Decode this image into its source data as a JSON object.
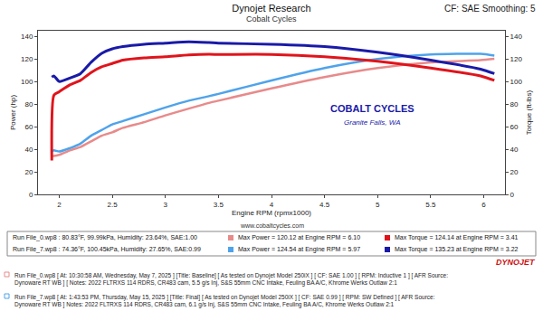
{
  "chart_data": {
    "type": "line",
    "title": "Dynojet Research",
    "subtitle": "Cobalt Cycles",
    "corner_text": "CF: SAE Smoothing: 5",
    "x_label": "Engine RPM (rpmx1000)",
    "y_label": "Power (hp)",
    "y2_label": "Torque (ft-lbs)",
    "website": "www.cobaltcycles.com",
    "logo": [
      "COBALT CYCLES",
      "Granite Falls, WA"
    ],
    "brand": "DYNOJET",
    "grid": false,
    "x": [
      1.93,
      1.95,
      2.0,
      2.1,
      2.2,
      2.3,
      2.4,
      2.5,
      2.6,
      2.8,
      3.0,
      3.22,
      3.41,
      3.5,
      4.0,
      4.5,
      5.0,
      5.5,
      5.97,
      6.1
    ],
    "xlim": [
      1.8,
      6.2
    ],
    "xticks": [
      2,
      2.5,
      3,
      3.5,
      4,
      4.5,
      5,
      5.5,
      6
    ],
    "ylim": [
      0,
      145
    ],
    "yticks": [
      0,
      20,
      40,
      60,
      80,
      100,
      120,
      140
    ],
    "y2lim": [
      0,
      145
    ],
    "y2ticks": [
      0,
      20,
      40,
      60,
      80,
      100,
      120,
      140
    ],
    "runs": [
      {
        "header": "Run File_0.wp8 : 80.83°F, 99.99kPa, Humidity: 23.64%, SAE:1.00",
        "note": "Run File_0.wp8 [ At: 10:30:58 AM, Wednesday, May 7, 2025 ] [Title: Baseline] [ As tested on Dynojet Model 250iX ] [ CF: SAE 1.00 ] [ RPM: Inductive 1 ] [ AFR Source: Dynoware RT WB ] [ Notes: 2022 FLTRXS 114 RDRS, CR483 cam, 5.5 g/s Inj, S&S 55mm CNC Intake, Feuling BA A/C, Khrome Werks Outlaw 2:1"
      },
      {
        "header": "Run File_7.wp8 : 74.36°F, 100.45kPa, Humidity: 27.65%, SAE:0.99",
        "note": "Run File_7.wp8 [ At: 1:43:53 PM, Thursday, May 15, 2025 ] [Title: Final] [ As tested on Dynojet Model 250iX ] [ CF: SAE 0.99 ] [ RPM: SW Defined ] [ AFR Source: Dynoware RT WB ] Notes: 2022 FLTRXS 114 RDRS, CR483 cam, 6.1 g/s Inj, S&S 55mm CNC Intake, Feuling BA A/C, Khrome Werks Outlaw 2:1"
      }
    ],
    "series": [
      {
        "name": "Max Power = 120.12 at Engine RPM = 6.10",
        "color": "#e88a8a",
        "values": [
          34,
          34,
          35,
          39,
          42,
          47,
          52,
          55,
          59,
          64,
          70,
          76,
          81,
          83,
          94,
          104,
          112,
          117,
          119,
          120.1
        ]
      },
      {
        "name": "Max Torque = 124.14 at Engine RPM = 3.41",
        "color": "#e0141c",
        "axis": "y2",
        "values": [
          30,
          88,
          91,
          97,
          101,
          108,
          113,
          116,
          119,
          121,
          122,
          123.5,
          124.1,
          124,
          124,
          122,
          118,
          112,
          105,
          101
        ]
      },
      {
        "name": "Max Power = 124.54 at Engine RPM = 5.97",
        "color": "#4fa3ea",
        "values": [
          38,
          39,
          38,
          41,
          45,
          52,
          57,
          62,
          65,
          71,
          77,
          83,
          87,
          89,
          101,
          112,
          120,
          124,
          124.5,
          123
        ]
      },
      {
        "name": "Max Torque = 135.23 at Engine RPM = 3.22",
        "color": "#1a1aa8",
        "axis": "y2",
        "values": [
          104,
          105,
          100,
          103,
          107,
          117,
          125,
          129,
          131,
          133,
          134,
          135.2,
          134.5,
          134,
          133,
          131,
          126,
          119,
          111,
          107
        ]
      }
    ]
  }
}
